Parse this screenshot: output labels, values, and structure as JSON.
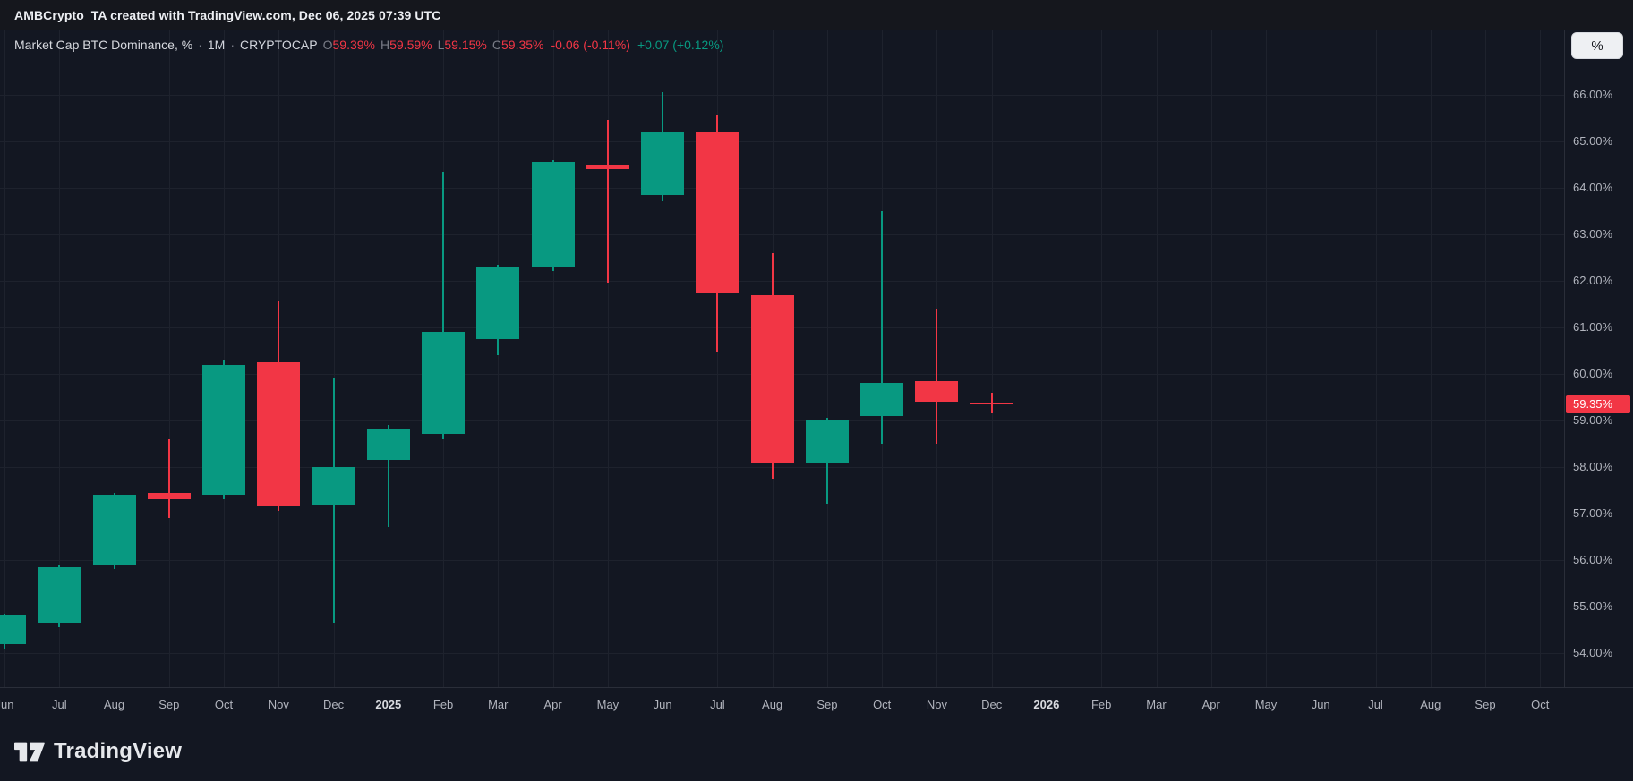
{
  "attribution": "AMBCrypto_TA created with TradingView.com, Dec 06, 2025 07:39 UTC",
  "legend": {
    "title": "Market Cap BTC Dominance, %",
    "sep": "·",
    "interval": "1M",
    "exchange": "CRYPTOCAP",
    "ohlc": [
      {
        "label": "O",
        "value": "59.39%"
      },
      {
        "label": "H",
        "value": "59.59%"
      },
      {
        "label": "L",
        "value": "59.15%"
      },
      {
        "label": "C",
        "value": "59.35%"
      }
    ],
    "change": "-0.06 (-0.11%)",
    "change2": "+0.07 (+0.12%)"
  },
  "price_scale": {
    "unit_button": "%",
    "last_price_label": "59.35%"
  },
  "logo": {
    "text": "TradingView"
  },
  "colors": {
    "bg": "#131722",
    "up": "#089981",
    "down": "#f23645",
    "grid": "#1e222d",
    "axis_text": "#b2b5be",
    "bright_text": "#d1d4dc",
    "muted_text": "#787b86",
    "separator": "#2a2e39",
    "last_price_bg": "#f23645"
  },
  "chart_data": {
    "type": "candlestick",
    "title": "Market Cap BTC Dominance, %",
    "symbol": "CRYPTOCAP",
    "interval": "1M",
    "ylabel": "%",
    "grid": true,
    "last_price": 59.35,
    "y_axis": {
      "render_min": 53.27,
      "render_max": 67.4,
      "tick_step": 1,
      "unit": "%",
      "ticks": [
        {
          "v": 66,
          "label": "66.00%"
        },
        {
          "v": 65,
          "label": "65.00%"
        },
        {
          "v": 64,
          "label": "64.00%"
        },
        {
          "v": 63,
          "label": "63.00%"
        },
        {
          "v": 62,
          "label": "62.00%"
        },
        {
          "v": 61,
          "label": "61.00%"
        },
        {
          "v": 60,
          "label": "60.00%"
        },
        {
          "v": 59,
          "label": "59.00%"
        },
        {
          "v": 58,
          "label": "58.00%"
        },
        {
          "v": 57,
          "label": "57.00%"
        },
        {
          "v": 56,
          "label": "56.00%"
        },
        {
          "v": 55,
          "label": "55.00%"
        },
        {
          "v": 54,
          "label": "54.00%"
        }
      ]
    },
    "x_ticks": [
      "Jun",
      "Jul",
      "Aug",
      "Sep",
      "Oct",
      "Nov",
      "Dec",
      "2025",
      "Feb",
      "Mar",
      "Apr",
      "May",
      "Jun",
      "Jul",
      "Aug",
      "Sep",
      "Oct",
      "Nov",
      "Dec",
      "2026",
      "Feb",
      "Mar",
      "Apr",
      "May",
      "Jun",
      "Jul",
      "Aug",
      "Sep",
      "Oct"
    ],
    "candles": [
      {
        "t": "Jun 2024",
        "o": 54.2,
        "h": 54.85,
        "l": 54.1,
        "c": 54.8
      },
      {
        "t": "Jul 2024",
        "o": 54.65,
        "h": 55.9,
        "l": 54.55,
        "c": 55.85
      },
      {
        "t": "Aug 2024",
        "o": 55.9,
        "h": 57.45,
        "l": 55.8,
        "c": 57.4
      },
      {
        "t": "Sep 2024",
        "o": 57.45,
        "h": 58.6,
        "l": 56.9,
        "c": 57.3
      },
      {
        "t": "Oct 2024",
        "o": 57.4,
        "h": 60.3,
        "l": 57.3,
        "c": 60.2
      },
      {
        "t": "Nov 2024",
        "o": 60.25,
        "h": 61.55,
        "l": 57.05,
        "c": 57.15
      },
      {
        "t": "Dec 2024",
        "o": 57.2,
        "h": 59.9,
        "l": 54.65,
        "c": 58.0
      },
      {
        "t": "Jan 2025",
        "o": 58.15,
        "h": 58.9,
        "l": 56.7,
        "c": 58.8
      },
      {
        "t": "Feb 2025",
        "o": 58.7,
        "h": 64.35,
        "l": 58.6,
        "c": 60.9
      },
      {
        "t": "Mar 2025",
        "o": 60.75,
        "h": 62.35,
        "l": 60.4,
        "c": 62.3
      },
      {
        "t": "Apr 2025",
        "o": 62.3,
        "h": 64.6,
        "l": 62.2,
        "c": 64.55
      },
      {
        "t": "May 2025",
        "o": 64.5,
        "h": 65.45,
        "l": 61.95,
        "c": 64.4
      },
      {
        "t": "Jun 2025",
        "o": 63.85,
        "h": 66.05,
        "l": 63.7,
        "c": 65.2
      },
      {
        "t": "Jul 2025",
        "o": 65.2,
        "h": 65.55,
        "l": 60.45,
        "c": 61.75
      },
      {
        "t": "Aug 2025",
        "o": 61.7,
        "h": 62.6,
        "l": 57.75,
        "c": 58.1
      },
      {
        "t": "Sep 2025",
        "o": 58.1,
        "h": 59.05,
        "l": 57.2,
        "c": 59.0
      },
      {
        "t": "Oct 2025",
        "o": 59.1,
        "h": 63.5,
        "l": 58.5,
        "c": 59.8
      },
      {
        "t": "Nov 2025",
        "o": 59.85,
        "h": 61.4,
        "l": 58.5,
        "c": 59.4
      },
      {
        "t": "Dec 2025",
        "o": 59.39,
        "h": 59.59,
        "l": 59.15,
        "c": 59.35
      }
    ]
  }
}
